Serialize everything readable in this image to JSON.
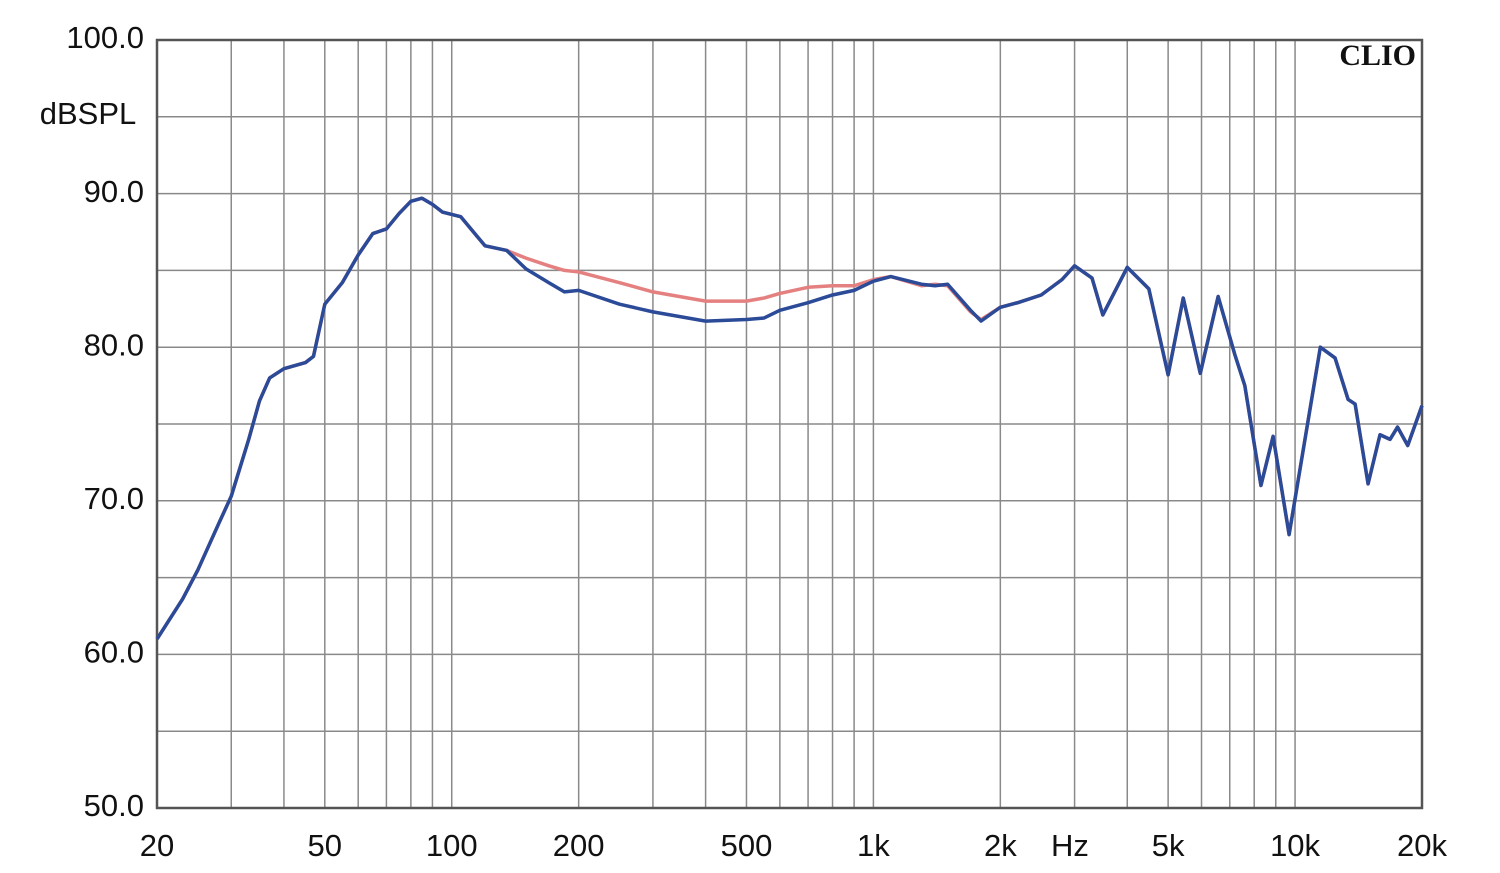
{
  "chart_data": {
    "type": "line",
    "ylabel": "dBSPL",
    "xlabel": "Hz",
    "watermark": "CLIO",
    "xscale": "log",
    "grid": true,
    "xlim": [
      20,
      20000
    ],
    "ylim": [
      50,
      100
    ],
    "xticks": [
      20,
      50,
      100,
      200,
      500,
      {
        "value": 1000,
        "label": "1k"
      },
      {
        "value": 2000,
        "label": "2k"
      },
      {
        "value": 5000,
        "label": "5k"
      },
      {
        "value": 10000,
        "label": "10k"
      },
      {
        "value": 20000,
        "label": "20k"
      }
    ],
    "yticks": [
      {
        "value": 50,
        "label": "50.0"
      },
      {
        "value": 60,
        "label": "60.0"
      },
      {
        "value": 70,
        "label": "70.0"
      },
      {
        "value": 80,
        "label": "80.0"
      },
      {
        "value": 90,
        "label": "90.0"
      },
      {
        "value": 100,
        "label": "100.0"
      }
    ],
    "xgrid": [
      30,
      40,
      60,
      70,
      80,
      90,
      300,
      400,
      600,
      700,
      800,
      900,
      3000,
      4000,
      6000,
      7000,
      8000,
      9000
    ],
    "ygrid": [
      55,
      65,
      75,
      85,
      95
    ],
    "x": [
      20,
      23,
      25,
      28,
      30,
      33,
      35,
      37,
      40,
      45,
      47,
      50,
      55,
      60,
      65,
      70,
      75,
      80,
      85,
      90,
      95,
      105,
      115,
      120,
      135,
      150,
      170,
      185,
      200,
      250,
      300,
      400,
      500,
      550,
      600,
      700,
      800,
      900,
      1000,
      1100,
      1300,
      1400,
      1500,
      1700,
      1800,
      2000,
      2200,
      2500,
      2800,
      3000,
      3300,
      3500,
      4000,
      4500,
      5000,
      5430,
      5960,
      6570,
      7200,
      7600,
      8300,
      8870,
      9680,
      11480,
      12440,
      13360,
      13880,
      14900,
      15900,
      16800,
      17500,
      18500,
      20000
    ],
    "series": [
      {
        "color": "#e58080",
        "values": [
          61.0,
          63.6,
          65.5,
          68.5,
          70.3,
          74.0,
          76.5,
          78.0,
          78.6,
          79.0,
          79.4,
          82.8,
          84.2,
          86.0,
          87.4,
          87.7,
          88.7,
          89.5,
          89.7,
          89.3,
          88.8,
          88.5,
          87.2,
          86.6,
          86.3,
          85.8,
          85.3,
          85.0,
          84.9,
          84.2,
          83.6,
          83.0,
          83.0,
          83.2,
          83.5,
          83.9,
          84.0,
          84.0,
          84.4,
          84.6,
          84.0,
          84.1,
          84.0,
          82.3,
          81.8,
          82.6,
          82.9,
          83.4,
          84.4,
          85.3,
          84.5,
          82.1,
          85.2,
          83.8,
          78.2,
          83.2,
          78.3,
          83.3,
          79.5,
          77.5,
          71.0,
          74.2,
          67.8,
          80.0,
          79.3,
          76.6,
          76.3,
          71.1,
          74.3,
          74.0,
          74.8,
          73.6,
          76.2
        ]
      },
      {
        "color": "#2b4a97",
        "values": [
          61.0,
          63.6,
          65.5,
          68.5,
          70.3,
          74.0,
          76.5,
          78.0,
          78.6,
          79.0,
          79.4,
          82.8,
          84.2,
          86.0,
          87.4,
          87.7,
          88.7,
          89.5,
          89.7,
          89.3,
          88.8,
          88.5,
          87.2,
          86.6,
          86.3,
          85.1,
          84.2,
          83.6,
          83.7,
          82.8,
          82.3,
          81.7,
          81.8,
          81.9,
          82.4,
          82.9,
          83.4,
          83.7,
          84.3,
          84.6,
          84.1,
          84.0,
          84.1,
          82.4,
          81.7,
          82.6,
          82.9,
          83.4,
          84.4,
          85.3,
          84.5,
          82.1,
          85.2,
          83.8,
          78.2,
          83.2,
          78.3,
          83.3,
          79.5,
          77.5,
          71.0,
          74.2,
          67.8,
          80.0,
          79.3,
          76.6,
          76.3,
          71.1,
          74.3,
          74.0,
          74.8,
          73.6,
          76.2
        ]
      }
    ]
  }
}
